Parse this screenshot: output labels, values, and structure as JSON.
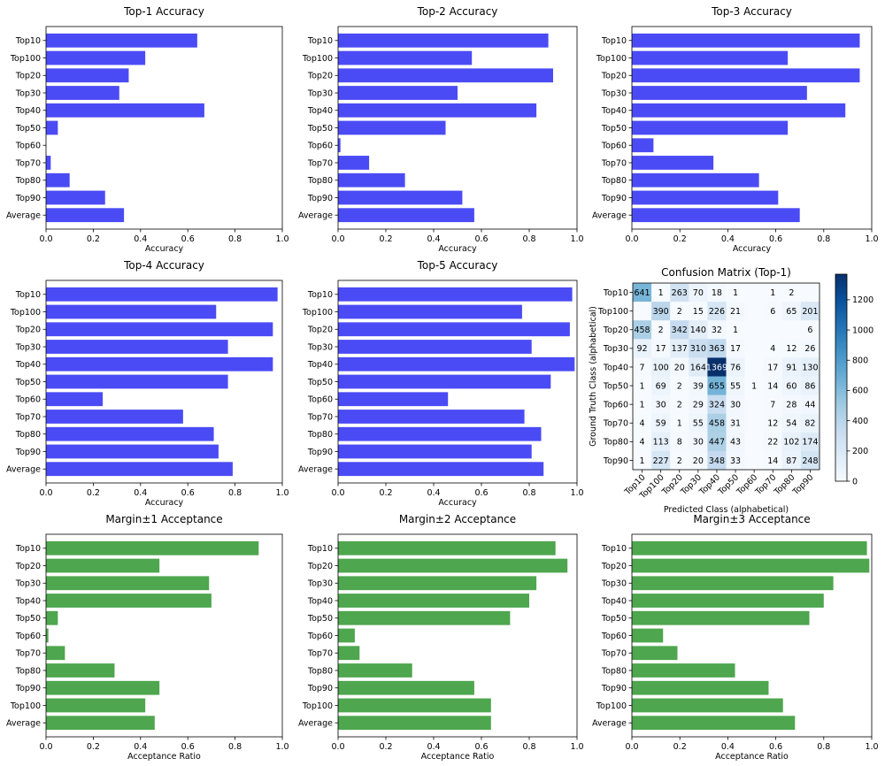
{
  "colors": {
    "accuracy_bar": "#4b4bf5",
    "acceptance_bar": "#4ea64e",
    "cmap_low": "#f7fbff",
    "cmap_high": "#08306b"
  },
  "chart_data": [
    {
      "id": "top1",
      "type": "bar",
      "orientation": "horizontal",
      "title": "Top-1 Accuracy",
      "xlabel": "Accuracy",
      "ylabel": "",
      "xlim": [
        0,
        1
      ],
      "xticks": [
        "0.0",
        "0.2",
        "0.4",
        "0.6",
        "0.8",
        "1.0"
      ],
      "categories": [
        "Top10",
        "Top100",
        "Top20",
        "Top30",
        "Top40",
        "Top50",
        "Top60",
        "Top70",
        "Top80",
        "Top90",
        "Average"
      ],
      "values": [
        0.64,
        0.42,
        0.35,
        0.31,
        0.67,
        0.05,
        0.0,
        0.02,
        0.1,
        0.25,
        0.33
      ]
    },
    {
      "id": "top2",
      "type": "bar",
      "orientation": "horizontal",
      "title": "Top-2 Accuracy",
      "xlabel": "Accuracy",
      "ylabel": "",
      "xlim": [
        0,
        1
      ],
      "xticks": [
        "0.0",
        "0.2",
        "0.4",
        "0.6",
        "0.8",
        "1.0"
      ],
      "categories": [
        "Top10",
        "Top100",
        "Top20",
        "Top30",
        "Top40",
        "Top50",
        "Top60",
        "Top70",
        "Top80",
        "Top90",
        "Average"
      ],
      "values": [
        0.88,
        0.56,
        0.9,
        0.5,
        0.83,
        0.45,
        0.01,
        0.13,
        0.28,
        0.52,
        0.57
      ]
    },
    {
      "id": "top3",
      "type": "bar",
      "orientation": "horizontal",
      "title": "Top-3 Accuracy",
      "xlabel": "Accuracy",
      "ylabel": "",
      "xlim": [
        0,
        1
      ],
      "xticks": [
        "0.0",
        "0.2",
        "0.4",
        "0.6",
        "0.8",
        "1.0"
      ],
      "categories": [
        "Top10",
        "Top100",
        "Top20",
        "Top30",
        "Top40",
        "Top50",
        "Top60",
        "Top70",
        "Top80",
        "Top90",
        "Average"
      ],
      "values": [
        0.95,
        0.65,
        0.95,
        0.73,
        0.89,
        0.65,
        0.09,
        0.34,
        0.53,
        0.61,
        0.7
      ]
    },
    {
      "id": "top4",
      "type": "bar",
      "orientation": "horizontal",
      "title": "Top-4 Accuracy",
      "xlabel": "Accuracy",
      "ylabel": "",
      "xlim": [
        0,
        1
      ],
      "xticks": [
        "0.0",
        "0.2",
        "0.4",
        "0.6",
        "0.8",
        "1.0"
      ],
      "categories": [
        "Top10",
        "Top100",
        "Top20",
        "Top30",
        "Top40",
        "Top50",
        "Top60",
        "Top70",
        "Top80",
        "Top90",
        "Average"
      ],
      "values": [
        0.98,
        0.72,
        0.96,
        0.77,
        0.96,
        0.77,
        0.24,
        0.58,
        0.71,
        0.73,
        0.79
      ]
    },
    {
      "id": "top5",
      "type": "bar",
      "orientation": "horizontal",
      "title": "Top-5 Accuracy",
      "xlabel": "Accuracy",
      "ylabel": "",
      "xlim": [
        0,
        1
      ],
      "xticks": [
        "0.0",
        "0.2",
        "0.4",
        "0.6",
        "0.8",
        "1.0"
      ],
      "categories": [
        "Top10",
        "Top100",
        "Top20",
        "Top30",
        "Top40",
        "Top50",
        "Top60",
        "Top70",
        "Top80",
        "Top90",
        "Average"
      ],
      "values": [
        0.98,
        0.77,
        0.97,
        0.81,
        0.99,
        0.89,
        0.46,
        0.78,
        0.85,
        0.81,
        0.86
      ]
    },
    {
      "id": "confusion",
      "type": "heatmap",
      "title": "Confusion Matrix (Top-1)",
      "xlabel": "Predicted Class (alphabetical)",
      "ylabel": "Ground Truth Class (alphabetical)",
      "x_categories": [
        "Top10",
        "Top100",
        "Top20",
        "Top30",
        "Top40",
        "Top50",
        "Top60",
        "Top70",
        "Top80",
        "Top90"
      ],
      "y_categories": [
        "Top10",
        "Top100",
        "Top20",
        "Top30",
        "Top40",
        "Top50",
        "Top60",
        "Top70",
        "Top80",
        "Top90"
      ],
      "matrix": [
        [
          641,
          1,
          263,
          70,
          18,
          1,
          0,
          1,
          2,
          0
        ],
        [
          0,
          390,
          2,
          15,
          226,
          21,
          0,
          6,
          65,
          201
        ],
        [
          458,
          2,
          342,
          140,
          32,
          1,
          0,
          0,
          0,
          6
        ],
        [
          92,
          17,
          137,
          310,
          363,
          17,
          0,
          4,
          12,
          26
        ],
        [
          7,
          100,
          20,
          164,
          1369,
          76,
          0,
          17,
          91,
          130
        ],
        [
          1,
          69,
          2,
          39,
          655,
          55,
          1,
          14,
          60,
          86
        ],
        [
          1,
          30,
          2,
          29,
          324,
          30,
          0,
          7,
          28,
          44
        ],
        [
          4,
          59,
          1,
          55,
          458,
          31,
          0,
          12,
          54,
          82
        ],
        [
          4,
          113,
          8,
          30,
          447,
          43,
          0,
          22,
          102,
          174
        ],
        [
          1,
          227,
          2,
          20,
          348,
          33,
          0,
          14,
          87,
          248
        ]
      ],
      "colorbar": {
        "min": 0,
        "max": 1369,
        "ticks": [
          "0",
          "200",
          "400",
          "600",
          "800",
          "1000",
          "1200"
        ]
      }
    },
    {
      "id": "margin1",
      "type": "bar",
      "orientation": "horizontal",
      "title": "Margin±1 Acceptance",
      "xlabel": "Acceptance Ratio",
      "ylabel": "",
      "xlim": [
        0,
        1
      ],
      "xticks": [
        "0.0",
        "0.2",
        "0.4",
        "0.6",
        "0.8",
        "1.0"
      ],
      "categories": [
        "Top10",
        "Top20",
        "Top30",
        "Top40",
        "Top50",
        "Top60",
        "Top70",
        "Top80",
        "Top90",
        "Top100",
        "Average"
      ],
      "values": [
        0.9,
        0.48,
        0.69,
        0.7,
        0.05,
        0.01,
        0.08,
        0.29,
        0.48,
        0.42,
        0.46
      ]
    },
    {
      "id": "margin2",
      "type": "bar",
      "orientation": "horizontal",
      "title": "Margin±2 Acceptance",
      "xlabel": "Acceptance Ratio",
      "ylabel": "",
      "xlim": [
        0,
        1
      ],
      "xticks": [
        "0.0",
        "0.2",
        "0.4",
        "0.6",
        "0.8",
        "1.0"
      ],
      "categories": [
        "Top10",
        "Top20",
        "Top30",
        "Top40",
        "Top50",
        "Top60",
        "Top70",
        "Top80",
        "Top90",
        "Top100",
        "Average"
      ],
      "values": [
        0.91,
        0.96,
        0.83,
        0.8,
        0.72,
        0.07,
        0.09,
        0.31,
        0.57,
        0.64,
        0.64
      ]
    },
    {
      "id": "margin3",
      "type": "bar",
      "orientation": "horizontal",
      "title": "Margin±3 Acceptance",
      "xlabel": "Acceptance Ratio",
      "ylabel": "",
      "xlim": [
        0,
        1
      ],
      "xticks": [
        "0.0",
        "0.2",
        "0.4",
        "0.6",
        "0.8",
        "1.0"
      ],
      "categories": [
        "Top10",
        "Top20",
        "Top30",
        "Top40",
        "Top50",
        "Top60",
        "Top70",
        "Top80",
        "Top90",
        "Top100",
        "Average"
      ],
      "values": [
        0.98,
        0.99,
        0.84,
        0.8,
        0.74,
        0.13,
        0.19,
        0.43,
        0.57,
        0.63,
        0.68
      ]
    }
  ]
}
